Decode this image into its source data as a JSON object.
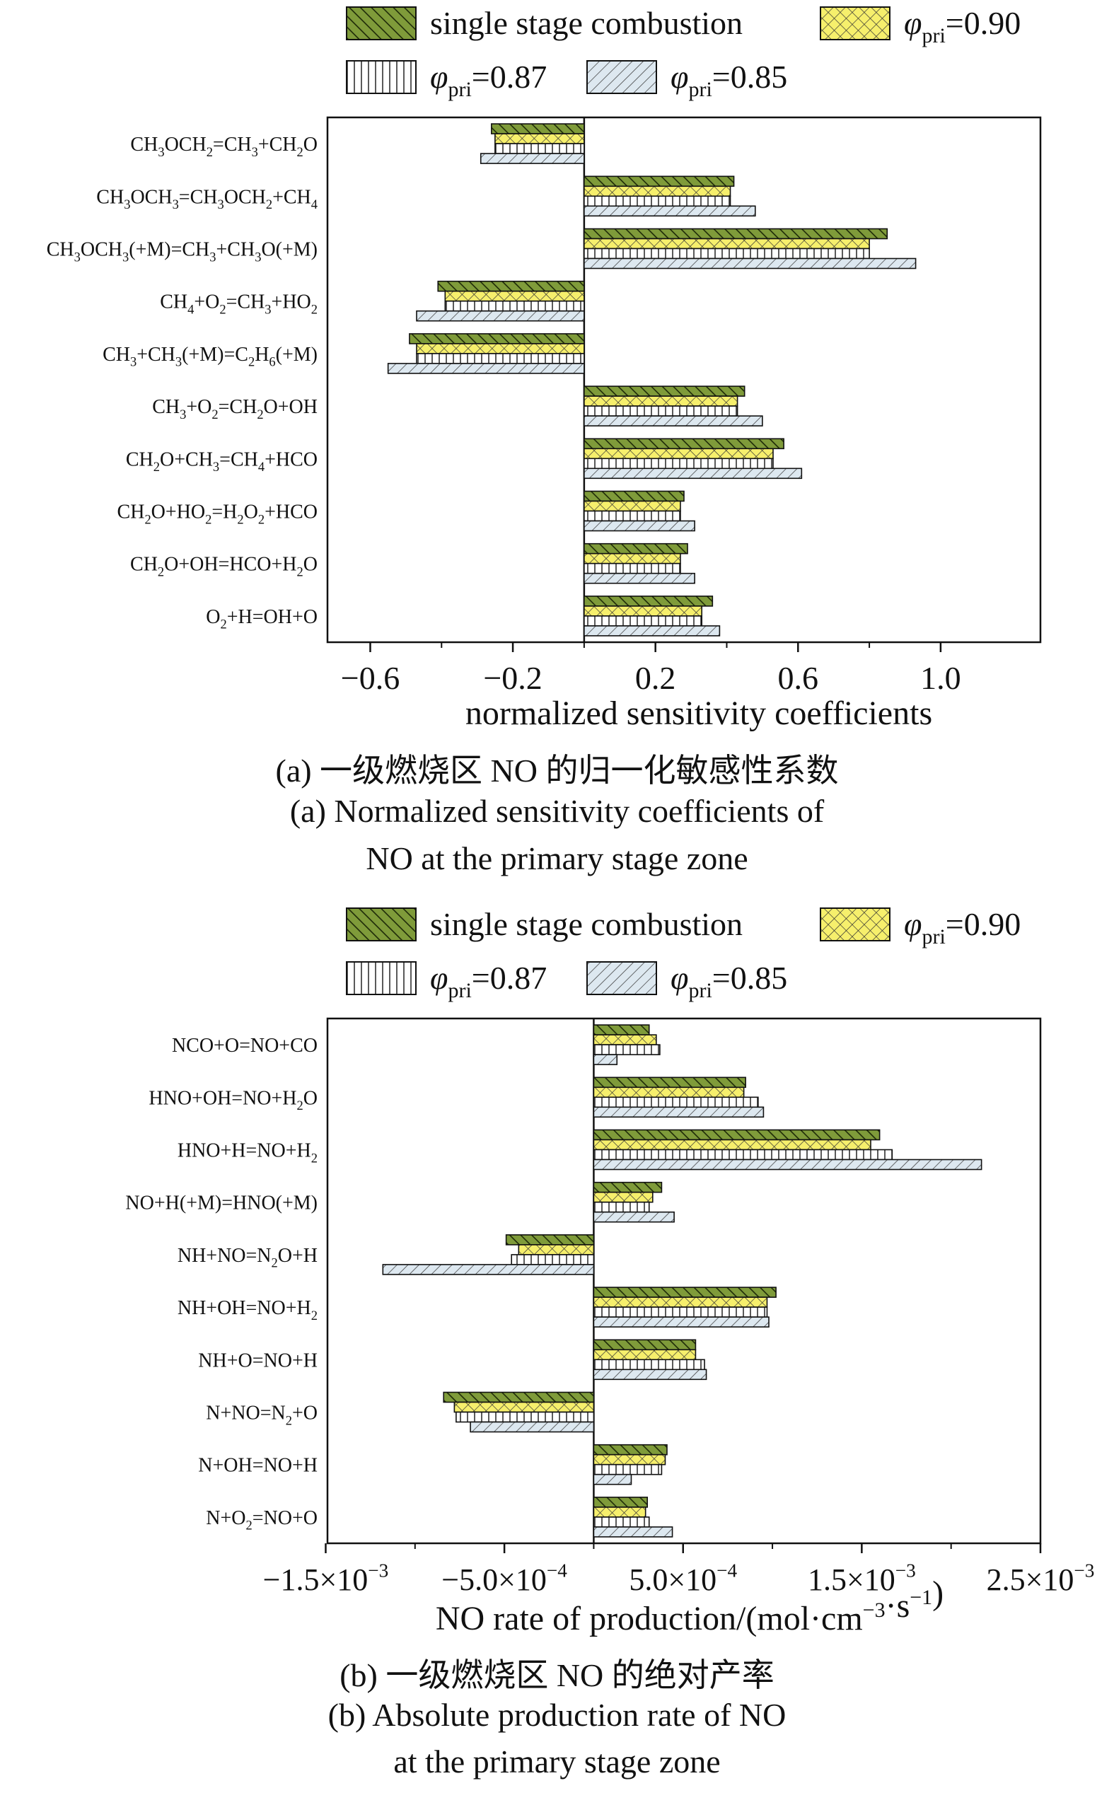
{
  "legend_items": [
    {
      "label": "single stage combustion",
      "pattern": "backdiag",
      "fill": "#7f9b3a"
    },
    {
      "label": "φpri=0.90",
      "pattern": "crosshatch",
      "fill": "#f6ef6c"
    },
    {
      "label": "φpri=0.87",
      "pattern": "vgrid",
      "fill": "#ffffff"
    },
    {
      "label": "φpri=0.85",
      "pattern": "fwddiag",
      "fill": "#dde8f0"
    }
  ],
  "colors": {
    "series1": "#7f9b3a",
    "series2": "#f6ef6c",
    "series3": "#ffffff",
    "series4": "#dde8f0"
  },
  "chart_data": [
    {
      "type": "bar",
      "orientation": "horizontal",
      "categories": [
        "CH3OCH2=CH3+CH2O",
        "CH3OCH3=CH3OCH2+CH4",
        "CH3OCH3(+M)=CH3+CH3O(+M)",
        "CH4+O2=CH3+HO2",
        "CH3+CH3(+M)=C2H6(+M)",
        "CH3+O2=CH2O+OH",
        "CH2O+CH3=CH4+HCO",
        "CH2O+HO2=H2O2+HCO",
        "CH2O+OH=HCO+H2O",
        "O2+H=OH+O"
      ],
      "series": [
        {
          "name": "single stage combustion",
          "values": [
            -0.26,
            0.42,
            0.85,
            -0.41,
            -0.49,
            0.45,
            0.56,
            0.28,
            0.29,
            0.36
          ]
        },
        {
          "name": "φpri=0.90",
          "values": [
            -0.25,
            0.41,
            0.8,
            -0.39,
            -0.47,
            0.43,
            0.53,
            0.27,
            0.27,
            0.33
          ]
        },
        {
          "name": "φpri=0.87",
          "values": [
            -0.25,
            0.41,
            0.8,
            -0.39,
            -0.47,
            0.43,
            0.53,
            0.27,
            0.27,
            0.33
          ]
        },
        {
          "name": "φpri=0.85",
          "values": [
            -0.29,
            0.48,
            0.93,
            -0.47,
            -0.55,
            0.5,
            0.61,
            0.31,
            0.31,
            0.38
          ]
        }
      ],
      "xlim": [
        -0.72,
        1.28
      ],
      "xticks": [
        -0.6,
        -0.2,
        0.2,
        0.6,
        1.0
      ],
      "xtick_labels": [
        "−0.6",
        "−0.2",
        "0.2",
        "0.6",
        "1.0"
      ],
      "xlabel": "normalized sensitivity coefficients",
      "caption_cn": "(a) 一级燃烧区 NO 的归一化敏感性系数",
      "caption_en1": "(a) Normalized sensitivity coefficients of",
      "caption_en2": "NO at the primary stage zone"
    },
    {
      "type": "bar",
      "orientation": "horizontal",
      "categories": [
        "NCO+O=NO+CO",
        "HNO+OH=NO+H2O",
        "HNO+H=NO+H2",
        "NO+H(+M)=HNO(+M)",
        "NH+NO=N2O+H",
        "NH+OH=NO+H2",
        "NH+O=NO+H",
        "N+NO=N2+O",
        "N+OH=NO+H",
        "N+O2=NO+O"
      ],
      "series": [
        {
          "name": "single stage combustion",
          "values": [
            0.00031,
            0.00085,
            0.0016,
            0.00038,
            -0.00049,
            0.00102,
            0.00057,
            -0.00084,
            0.00041,
            0.0003
          ]
        },
        {
          "name": "φpri=0.90",
          "values": [
            0.00035,
            0.00084,
            0.00155,
            0.00033,
            -0.00042,
            0.00097,
            0.00057,
            -0.00078,
            0.0004,
            0.00029
          ]
        },
        {
          "name": "φpri=0.87",
          "values": [
            0.00037,
            0.00092,
            0.00167,
            0.00031,
            -0.00046,
            0.00097,
            0.00062,
            -0.00077,
            0.00038,
            0.00031
          ]
        },
        {
          "name": "φpri=0.85",
          "values": [
            0.00013,
            0.00095,
            0.00217,
            0.00045,
            -0.00118,
            0.00098,
            0.00063,
            -0.00069,
            0.00021,
            0.00044
          ]
        }
      ],
      "xlim": [
        -0.00149,
        0.0025
      ],
      "xticks": [
        -0.0015,
        -0.0005,
        0.0005,
        0.0015,
        0.0025
      ],
      "xtick_labels": [
        "−1.5×10−3",
        "−5.0×10−4",
        "5.0×10−4",
        "1.5×10−3",
        "2.5×10−3"
      ],
      "xlabel": "NO rate of production/(mol·cm−3·s−1)",
      "caption_cn": "(b) 一级燃烧区 NO 的绝对产率",
      "caption_en1": "(b) Absolute production rate of NO",
      "caption_en2": "at the primary stage zone"
    }
  ]
}
